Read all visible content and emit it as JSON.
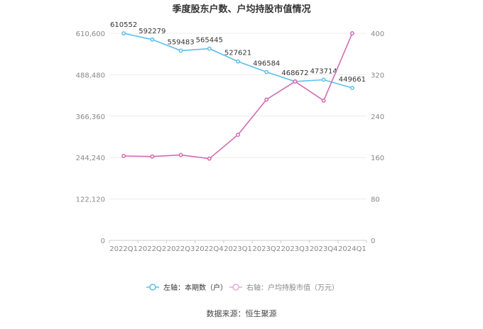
{
  "chart_data": {
    "type": "line",
    "title": "季度股东户数、户均持股市值情况",
    "source": "数据来源：恒生聚源",
    "categories": [
      "2022Q1",
      "2022Q2",
      "2022Q3",
      "2022Q4",
      "2023Q1",
      "2023Q2",
      "2023Q3",
      "2023Q4",
      "2024Q1"
    ],
    "left_axis": {
      "ticks": [
        "0",
        "122,120",
        "244,240",
        "366,360",
        "488,480",
        "610,600"
      ],
      "ylim": [
        0,
        610600
      ]
    },
    "right_axis": {
      "ticks": [
        "0",
        "80",
        "160",
        "240",
        "320",
        "400"
      ],
      "ylim": [
        0,
        400
      ]
    },
    "series": [
      {
        "name": "左轴：本期数（户）",
        "axis": "left",
        "color": "#5bc0eb",
        "values": [
          610552,
          592279,
          559483,
          565445,
          527621,
          496584,
          468672,
          473714,
          449661
        ],
        "labels": [
          "610552",
          "592279",
          "559483",
          "565445",
          "527621",
          "496584",
          "468672",
          "473714",
          "449661"
        ]
      },
      {
        "name": "右轴：户均持股市值（万元）",
        "axis": "right",
        "color": "#d16bb5",
        "values": [
          163,
          162,
          165,
          158,
          204,
          272,
          307,
          270,
          400
        ]
      }
    ],
    "legend_position": "bottom",
    "grid": true
  }
}
